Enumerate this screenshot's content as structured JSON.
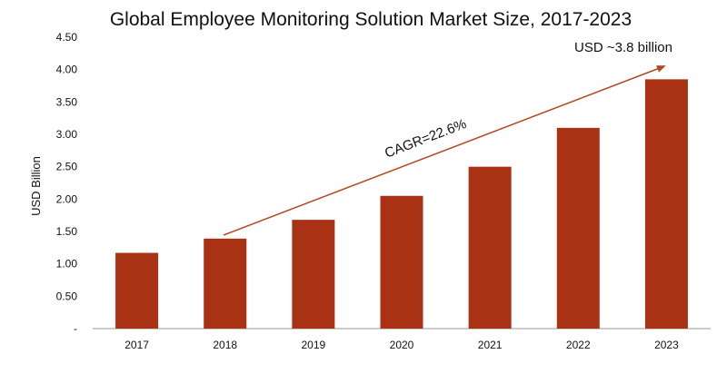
{
  "chart_data": {
    "type": "bar",
    "title": "Global Employee Monitoring Solution Market Size, 2017-2023",
    "xlabel": "",
    "ylabel": "USD Billion",
    "categories": [
      "2017",
      "2018",
      "2019",
      "2020",
      "2021",
      "2022",
      "2023"
    ],
    "values": [
      1.17,
      1.39,
      1.68,
      2.05,
      2.5,
      3.1,
      3.85
    ],
    "ylim": [
      0,
      4.5
    ],
    "yticks": [
      "-",
      "0.50",
      "1.00",
      "1.50",
      "2.00",
      "2.50",
      "3.00",
      "3.50",
      "4.00",
      "4.50"
    ],
    "ytick_values": [
      0,
      0.5,
      1,
      1.5,
      2,
      2.5,
      3,
      3.5,
      4,
      4.5
    ],
    "grid": false,
    "bar_color": "#A93214",
    "arrow_color": "#B5471F",
    "annotations": {
      "cagr": "CAGR=22.6%",
      "end_value": "USD ~3.8 billion"
    }
  }
}
